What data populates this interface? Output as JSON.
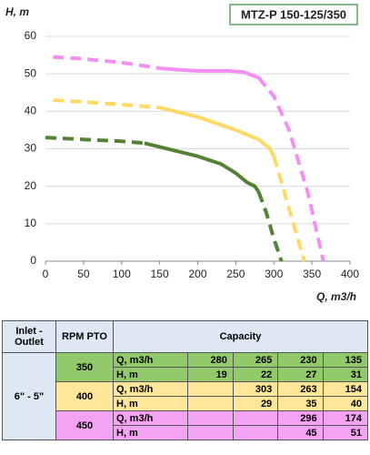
{
  "chart_data": {
    "type": "line",
    "title": "MTZ-P 150-125/350",
    "y_label": "H, m",
    "x_label": "Q, m3/h",
    "xlim": [
      0,
      400
    ],
    "xticks": [
      0,
      50,
      100,
      150,
      200,
      250,
      300,
      350,
      400
    ],
    "ylim": [
      0,
      60
    ],
    "yticks": [
      0,
      10,
      20,
      30,
      40,
      50,
      60
    ],
    "grid": true,
    "series": [
      {
        "color": "#548235",
        "dashed": true,
        "x": [
          0,
          50,
          100,
          130
        ],
        "values": [
          33,
          32.5,
          32,
          31.5
        ]
      },
      {
        "color": "#548235",
        "dashed": false,
        "x": [
          130,
          150,
          200,
          230,
          250,
          265,
          275,
          280
        ],
        "values": [
          31.5,
          30.5,
          28,
          26,
          23.5,
          21,
          20,
          18.5
        ]
      },
      {
        "color": "#548235",
        "dashed": true,
        "x": [
          280,
          290,
          300,
          310
        ],
        "values": [
          18.5,
          13,
          6,
          0
        ]
      },
      {
        "color": "#ffd966",
        "dashed": true,
        "x": [
          10,
          50,
          100,
          150
        ],
        "values": [
          43,
          42.5,
          41.8,
          41
        ]
      },
      {
        "color": "#ffd966",
        "dashed": false,
        "x": [
          150,
          200,
          250,
          280,
          295,
          300
        ],
        "values": [
          41,
          38.5,
          35,
          32.5,
          30,
          28
        ]
      },
      {
        "color": "#ffd966",
        "dashed": true,
        "x": [
          300,
          320,
          340
        ],
        "values": [
          28,
          14,
          0
        ]
      },
      {
        "color": "#f38ff3",
        "dashed": true,
        "x": [
          10,
          50,
          100,
          150
        ],
        "values": [
          54.5,
          54,
          53,
          51.5
        ]
      },
      {
        "color": "#f38ff3",
        "dashed": false,
        "x": [
          150,
          180,
          200,
          240,
          260,
          280
        ],
        "values": [
          51.5,
          51,
          50.8,
          50.8,
          50.5,
          49
        ]
      },
      {
        "color": "#f38ff3",
        "dashed": true,
        "x": [
          280,
          300,
          320,
          345,
          365
        ],
        "values": [
          49,
          44,
          35,
          18,
          0
        ]
      }
    ]
  },
  "table": {
    "headers": [
      "Inlet - Outlet",
      "RPM PTO",
      "Capacity"
    ],
    "inlet": "6\" - 5\"",
    "groups": [
      {
        "rpm": 350,
        "color": "#92c96a",
        "rows": [
          {
            "label": "Q, m3/h",
            "values": [
              280,
              265,
              230,
              135
            ]
          },
          {
            "label": "H, m",
            "values": [
              19,
              22,
              27,
              31
            ]
          }
        ]
      },
      {
        "rpm": 400,
        "color": "#ffe699",
        "rows": [
          {
            "label": "Q, m3/h",
            "values": [
              null,
              303,
              263,
              154
            ]
          },
          {
            "label": "H, m",
            "values": [
              null,
              29,
              35,
              40
            ]
          }
        ]
      },
      {
        "rpm": 450,
        "color": "#f4a3f4",
        "rows": [
          {
            "label": "Q, m3/h",
            "values": [
              null,
              null,
              296,
              174
            ]
          },
          {
            "label": "H, m",
            "values": [
              null,
              null,
              45,
              51
            ]
          }
        ]
      }
    ]
  }
}
